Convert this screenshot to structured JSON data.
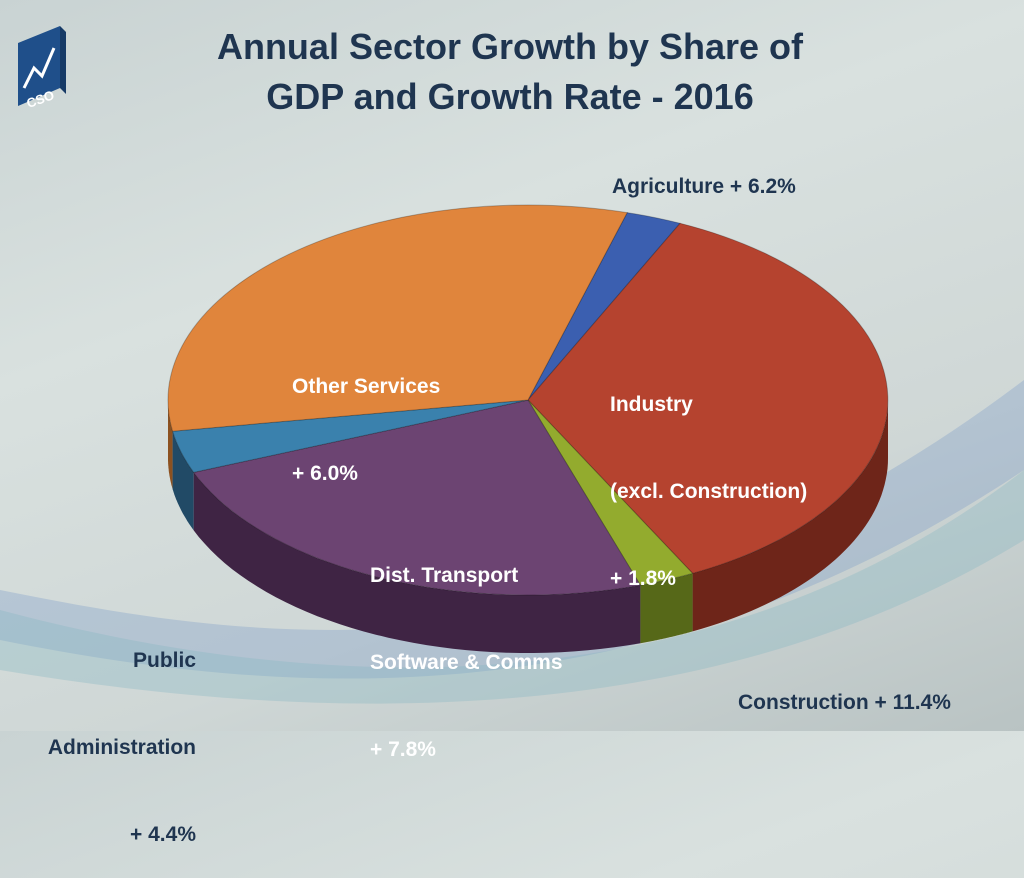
{
  "colors": {
    "title": "#1f3550",
    "background": "#d3dbda"
  },
  "logo": {
    "text": "CSO"
  },
  "chart_data": {
    "type": "pie",
    "title": "Annual Sector Growth by Share of GDP and Growth Rate - 2016",
    "title_lines": [
      "Annual Sector Growth by Share of",
      "GDP and Growth Rate - 2016"
    ],
    "slices": [
      {
        "name": "Agriculture",
        "growth": "+ 6.2%",
        "label": "Agriculture + 6.2%",
        "share": 2.5,
        "color": "#3b5fb0",
        "side": "#24396b"
      },
      {
        "name": "Industry (excl. Construction)",
        "growth": "+ 1.8%",
        "label_lines": [
          "Industry",
          "(excl. Construction)",
          "+ 1.8%"
        ],
        "share": 35.5,
        "color": "#b5432f",
        "side": "#6e2519"
      },
      {
        "name": "Construction",
        "growth": "+ 11.4%",
        "label": "Construction + 11.4%",
        "share": 2.5,
        "color": "#93ab2e",
        "side": "#566818"
      },
      {
        "name": "Dist. Transport Software & Comms",
        "growth": "+ 7.8%",
        "label_lines": [
          "Dist. Transport",
          "Software & Comms",
          "+ 7.8%"
        ],
        "share": 24.0,
        "color": "#6c4472",
        "side": "#3f2444"
      },
      {
        "name": "Public Administration",
        "growth": "+ 4.4%",
        "label_lines": [
          "Public",
          "Administration",
          "+ 4.4%"
        ],
        "share": 3.5,
        "color": "#3a81ad",
        "side": "#214a66"
      },
      {
        "name": "Other Services",
        "growth": "+ 6.0%",
        "label_lines": [
          "Other Services",
          "+ 6.0%"
        ],
        "share": 32.0,
        "color": "#e0853c",
        "side": "#8c5120"
      }
    ]
  }
}
